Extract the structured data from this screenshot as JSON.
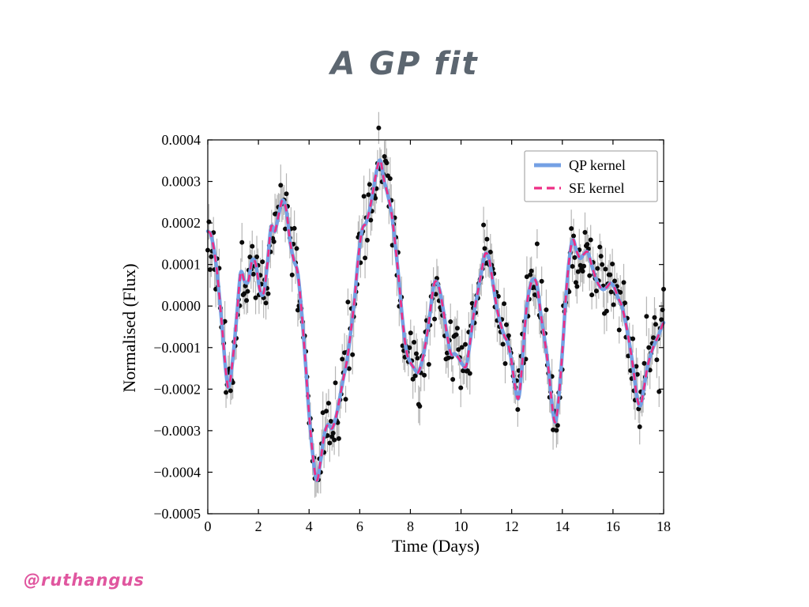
{
  "slide": {
    "title": "A GP fit",
    "credit": "@ruthangus"
  },
  "chart_data": {
    "type": "line+scatter",
    "title": "A GP fit",
    "xlabel": "Time (Days)",
    "ylabel": "Normalised (Flux)",
    "xlim": [
      0,
      18
    ],
    "ylim": [
      -0.0005,
      0.0004
    ],
    "grid": false,
    "legend_position": "upper right",
    "frame_color": "#000000",
    "xticks": {
      "values": [
        0,
        2,
        4,
        6,
        8,
        10,
        12,
        14,
        16,
        18
      ],
      "labels": [
        "0",
        "2",
        "4",
        "6",
        "8",
        "10",
        "12",
        "14",
        "16",
        "18"
      ]
    },
    "yticks": {
      "values": [
        0.0004,
        0.0003,
        0.0002,
        0.0001,
        0.0,
        -0.0001,
        -0.0002,
        -0.0003,
        -0.0004,
        -0.0005
      ],
      "labels": [
        "0.0004",
        "0.0003",
        "0.0002",
        "0.0001",
        "0.0000",
        "−0.0001",
        "−0.0002",
        "−0.0003",
        "−0.0004",
        "−0.0005"
      ]
    },
    "series": [
      {
        "name": "QP kernel",
        "color": "#74a0e4",
        "style": "solid",
        "width": 4.5
      },
      {
        "name": "SE kernel",
        "color": "#ee2d85",
        "style": "dashed",
        "width": 2.6,
        "dash": "9 7"
      }
    ],
    "curve_points": [
      [
        0.0,
        0.00018
      ],
      [
        0.15,
        0.000165
      ],
      [
        0.35,
        9e-05
      ],
      [
        0.55,
        -4e-05
      ],
      [
        0.75,
        -0.000175
      ],
      [
        0.85,
        -0.00019
      ],
      [
        1.0,
        -0.00012
      ],
      [
        1.15,
        -2e-05
      ],
      [
        1.3,
        8e-05
      ],
      [
        1.45,
        6e-05
      ],
      [
        1.6,
        6e-05
      ],
      [
        1.75,
        0.00011
      ],
      [
        1.9,
        0.0001
      ],
      [
        2.05,
        4e-05
      ],
      [
        2.2,
        3e-05
      ],
      [
        2.35,
        0.0001
      ],
      [
        2.5,
        0.00019
      ],
      [
        2.65,
        0.00018
      ],
      [
        2.8,
        0.00022
      ],
      [
        2.95,
        0.000255
      ],
      [
        3.1,
        0.00023
      ],
      [
        3.25,
        0.000155
      ],
      [
        3.4,
        0.00011
      ],
      [
        3.55,
        8e-05
      ],
      [
        3.7,
        -1e-05
      ],
      [
        3.85,
        -0.00013
      ],
      [
        4.0,
        -0.00026
      ],
      [
        4.15,
        -0.00036
      ],
      [
        4.3,
        -0.00042
      ],
      [
        4.45,
        -0.000375
      ],
      [
        4.6,
        -0.00031
      ],
      [
        4.75,
        -0.000285
      ],
      [
        4.9,
        -0.000295
      ],
      [
        5.05,
        -0.00027
      ],
      [
        5.2,
        -0.000225
      ],
      [
        5.35,
        -0.000175
      ],
      [
        5.5,
        -0.00013
      ],
      [
        5.65,
        -6e-05
      ],
      [
        5.8,
        2e-05
      ],
      [
        5.95,
        0.00012
      ],
      [
        6.1,
        0.000185
      ],
      [
        6.25,
        0.0002
      ],
      [
        6.4,
        0.000235
      ],
      [
        6.55,
        0.000285
      ],
      [
        6.7,
        0.000335
      ],
      [
        6.82,
        0.00035
      ],
      [
        6.95,
        0.000305
      ],
      [
        7.1,
        0.00027
      ],
      [
        7.25,
        0.000225
      ],
      [
        7.4,
        0.00015
      ],
      [
        7.55,
        6e-05
      ],
      [
        7.7,
        -4e-05
      ],
      [
        7.85,
        -0.00011
      ],
      [
        8.0,
        -0.000135
      ],
      [
        8.15,
        -0.00015
      ],
      [
        8.3,
        -0.00016
      ],
      [
        8.45,
        -0.000135
      ],
      [
        8.6,
        -9e-05
      ],
      [
        8.75,
        -3e-05
      ],
      [
        8.9,
        4e-05
      ],
      [
        9.0,
        6e-05
      ],
      [
        9.15,
        4e-05
      ],
      [
        9.3,
        -1e-05
      ],
      [
        9.45,
        -7e-05
      ],
      [
        9.6,
        -0.000115
      ],
      [
        9.75,
        -0.000115
      ],
      [
        9.9,
        -0.000125
      ],
      [
        10.05,
        -0.00014
      ],
      [
        10.2,
        -0.000145
      ],
      [
        10.35,
        -9e-05
      ],
      [
        10.5,
        -2e-05
      ],
      [
        10.65,
        3e-05
      ],
      [
        10.8,
        8e-05
      ],
      [
        10.95,
        0.000125
      ],
      [
        11.1,
        0.000115
      ],
      [
        11.25,
        6e-05
      ],
      [
        11.4,
        0.0
      ],
      [
        11.55,
        -4e-05
      ],
      [
        11.7,
        -7e-05
      ],
      [
        11.85,
        -9e-05
      ],
      [
        12.0,
        -0.000135
      ],
      [
        12.15,
        -0.0002
      ],
      [
        12.28,
        -0.00022
      ],
      [
        12.42,
        -0.000135
      ],
      [
        12.56,
        -2e-05
      ],
      [
        12.7,
        4e-05
      ],
      [
        12.85,
        6.5e-05
      ],
      [
        13.0,
        5e-05
      ],
      [
        13.15,
        -2e-05
      ],
      [
        13.3,
        -8e-05
      ],
      [
        13.45,
        -0.00015
      ],
      [
        13.6,
        -0.00024
      ],
      [
        13.72,
        -0.00028
      ],
      [
        13.85,
        -0.000225
      ],
      [
        14.0,
        -0.00011
      ],
      [
        14.15,
        3e-05
      ],
      [
        14.3,
        0.000125
      ],
      [
        14.42,
        0.00016
      ],
      [
        14.55,
        0.000135
      ],
      [
        14.7,
        0.000115
      ],
      [
        14.85,
        0.000125
      ],
      [
        15.0,
        0.00013
      ],
      [
        15.15,
        0.0001
      ],
      [
        15.3,
        7e-05
      ],
      [
        15.45,
        5e-05
      ],
      [
        15.6,
        4e-05
      ],
      [
        15.75,
        4.5e-05
      ],
      [
        15.9,
        5.5e-05
      ],
      [
        16.05,
        4.5e-05
      ],
      [
        16.2,
        2e-05
      ],
      [
        16.35,
        0.0
      ],
      [
        16.5,
        -4e-05
      ],
      [
        16.65,
        -9e-05
      ],
      [
        16.8,
        -0.00015
      ],
      [
        16.95,
        -0.00022
      ],
      [
        17.08,
        -0.00024
      ],
      [
        17.2,
        -0.000205
      ],
      [
        17.35,
        -0.00015
      ],
      [
        17.5,
        -0.000115
      ],
      [
        17.65,
        -9e-05
      ],
      [
        17.8,
        -7e-05
      ],
      [
        18.0,
        -4e-05
      ]
    ],
    "scatter": {
      "dt": 0.045,
      "noise_sigma": 4e-05,
      "error_bar": 4e-05,
      "seed": 11,
      "point_color": "#0b0b0b",
      "error_color": "#b5b5b5",
      "point_radius": 3
    }
  }
}
